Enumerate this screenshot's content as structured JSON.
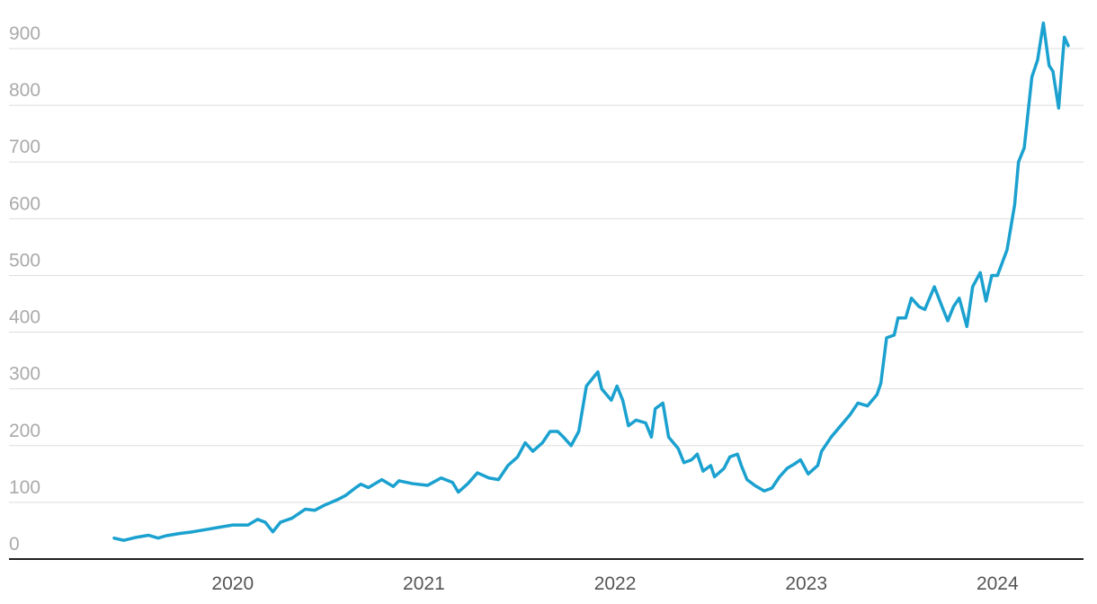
{
  "chart_data": {
    "type": "line",
    "x": [
      2019.38,
      2019.43,
      2019.49,
      2019.56,
      2019.61,
      2019.65,
      2019.72,
      2019.79,
      2019.86,
      2019.93,
      2020.0,
      2020.08,
      2020.13,
      2020.17,
      2020.21,
      2020.25,
      2020.31,
      2020.38,
      2020.43,
      2020.48,
      2020.55,
      2020.59,
      2020.64,
      2020.67,
      2020.71,
      2020.78,
      2020.84,
      2020.87,
      2020.94,
      2021.02,
      2021.09,
      2021.15,
      2021.18,
      2021.23,
      2021.28,
      2021.34,
      2021.39,
      2021.44,
      2021.49,
      2021.53,
      2021.57,
      2021.62,
      2021.66,
      2021.7,
      2021.73,
      2021.77,
      2021.81,
      2021.85,
      2021.91,
      2021.93,
      2021.98,
      2022.01,
      2022.04,
      2022.07,
      2022.11,
      2022.16,
      2022.19,
      2022.21,
      2022.25,
      2022.28,
      2022.33,
      2022.36,
      2022.4,
      2022.43,
      2022.46,
      2022.5,
      2022.52,
      2022.57,
      2022.6,
      2022.64,
      2022.66,
      2022.69,
      2022.73,
      2022.78,
      2022.82,
      2022.86,
      2022.9,
      2022.94,
      2022.97,
      2023.01,
      2023.06,
      2023.08,
      2023.13,
      2023.18,
      2023.23,
      2023.27,
      2023.32,
      2023.37,
      2023.39,
      2023.42,
      2023.46,
      2023.48,
      2023.52,
      2023.55,
      2023.59,
      2023.62,
      2023.67,
      2023.71,
      2023.74,
      2023.77,
      2023.8,
      2023.84,
      2023.87,
      2023.91,
      2023.94,
      2023.97,
      2024.0,
      2024.05,
      2024.09,
      2024.11,
      2024.14,
      2024.18,
      2024.21,
      2024.24,
      2024.27,
      2024.29,
      2024.32,
      2024.34,
      2024.35,
      2024.37
    ],
    "series": [
      {
        "color": "#1ba1cf",
        "values": [
          37,
          33,
          38,
          42,
          37,
          41,
          45,
          48,
          52,
          56,
          60,
          60,
          70,
          65,
          48,
          65,
          72,
          88,
          86,
          95,
          105,
          112,
          125,
          132,
          126,
          140,
          128,
          138,
          133,
          130,
          143,
          135,
          118,
          133,
          152,
          143,
          140,
          165,
          180,
          205,
          190,
          205,
          225,
          225,
          215,
          200,
          225,
          305,
          330,
          300,
          280,
          305,
          280,
          235,
          245,
          240,
          215,
          265,
          275,
          215,
          195,
          170,
          175,
          185,
          155,
          165,
          145,
          160,
          180,
          185,
          165,
          140,
          130,
          120,
          125,
          145,
          160,
          168,
          175,
          150,
          165,
          190,
          215,
          235,
          255,
          275,
          270,
          290,
          310,
          390,
          395,
          425,
          425,
          460,
          445,
          440,
          480,
          445,
          420,
          445,
          460,
          410,
          480,
          505,
          455,
          500,
          500,
          545,
          625,
          700,
          725,
          850,
          880,
          945,
          870,
          860,
          795,
          880,
          920,
          905
        ]
      }
    ],
    "xlim": [
      2018.83,
      2024.45
    ],
    "xticks": [
      2020,
      2021,
      2022,
      2023,
      2024
    ],
    "ylim": [
      0,
      950
    ],
    "yticks": [
      0,
      100,
      200,
      300,
      400,
      500,
      600,
      700,
      800,
      900
    ],
    "grid": true
  }
}
